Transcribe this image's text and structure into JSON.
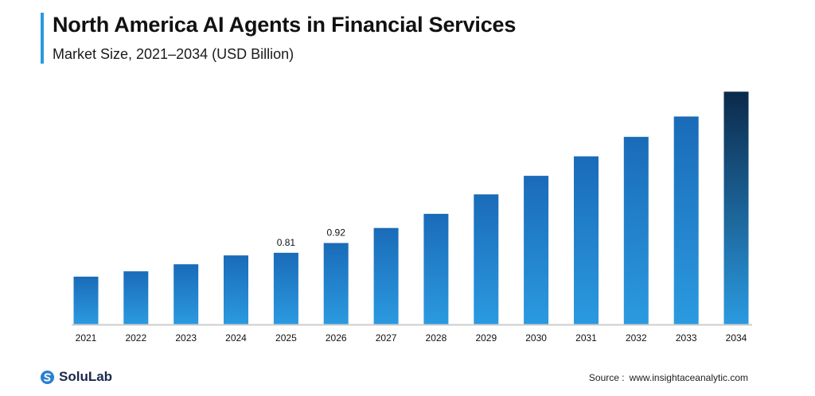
{
  "header": {
    "title": "North America AI Agents in Financial Services",
    "subtitle": "Market Size, 2021–2034 (USD Billion)"
  },
  "footer": {
    "logo_text": "SoluLab",
    "source_label": "Source :",
    "source_url": "www.insightaceanalytic.com"
  },
  "colors": {
    "accent": "#2b9ae0",
    "bar_top": "#1a6bb8",
    "bar_bottom": "#2b9ae0",
    "bar_last_top": "#0b2a4a",
    "axis": "#cccccc"
  },
  "chart_data": {
    "type": "bar",
    "title": "North America AI Agents in Financial Services",
    "subtitle": "Market Size, 2021–2034 (USD Billion)",
    "categories": [
      "2021",
      "2022",
      "2023",
      "2024",
      "2025",
      "2026",
      "2027",
      "2028",
      "2029",
      "2030",
      "2031",
      "2032",
      "2033",
      "2034"
    ],
    "values": [
      0.54,
      0.6,
      0.68,
      0.78,
      0.81,
      0.92,
      1.09,
      1.25,
      1.47,
      1.68,
      1.9,
      2.12,
      2.35,
      2.63
    ],
    "data_labels": {
      "4": "0.81",
      "5": "0.92"
    },
    "xlabel": "",
    "ylabel": "",
    "ylim": [
      0,
      2.66
    ],
    "grid": false,
    "legend": "none"
  }
}
